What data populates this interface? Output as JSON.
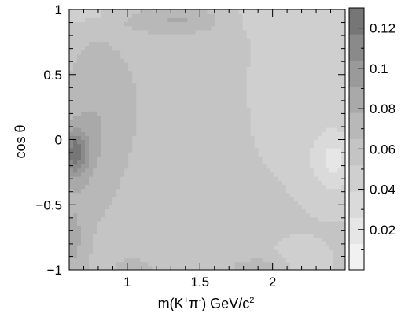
{
  "chart_data": {
    "type": "heatmap",
    "title": "",
    "xlabel_parts": {
      "base": "m(K",
      "sup1": "+",
      "mid": "π",
      "sup2": "-",
      "end": ") GeV/c",
      "sup3": "2"
    },
    "ylabel": "cos θ",
    "xlim": [
      0.6,
      2.5
    ],
    "ylim": [
      -1,
      1
    ],
    "x_ticks": [
      {
        "value": 1,
        "label": "1"
      },
      {
        "value": 1.5,
        "label": "1.5"
      },
      {
        "value": 2,
        "label": "2"
      }
    ],
    "y_ticks": [
      {
        "value": 1,
        "label": "1"
      },
      {
        "value": 0.5,
        "label": "0.5"
      },
      {
        "value": 0,
        "label": "0"
      },
      {
        "value": -0.5,
        "label": "−0.5"
      },
      {
        "value": -1,
        "label": "−1"
      }
    ],
    "colorbar": {
      "range": [
        0,
        0.13
      ],
      "ticks": [
        {
          "value": 0.02,
          "label": "0.02"
        },
        {
          "value": 0.04,
          "label": "0.04"
        },
        {
          "value": 0.06,
          "label": "0.06"
        },
        {
          "value": 0.08,
          "label": "0.08"
        },
        {
          "value": 0.1,
          "label": "0.1"
        },
        {
          "value": 0.12,
          "label": "0.12"
        }
      ],
      "levels": [
        {
          "min": 0.0,
          "max": 0.013,
          "color": "#f1f1f1"
        },
        {
          "min": 0.013,
          "max": 0.026,
          "color": "#e6e6e6"
        },
        {
          "min": 0.026,
          "max": 0.039,
          "color": "#dadada"
        },
        {
          "min": 0.039,
          "max": 0.052,
          "color": "#cfcfcf"
        },
        {
          "min": 0.052,
          "max": 0.065,
          "color": "#c4c4c4"
        },
        {
          "min": 0.065,
          "max": 0.078,
          "color": "#b8b8b8"
        },
        {
          "min": 0.078,
          "max": 0.091,
          "color": "#a9a9a9"
        },
        {
          "min": 0.091,
          "max": 0.104,
          "color": "#9a9a9a"
        },
        {
          "min": 0.104,
          "max": 0.117,
          "color": "#8a8a8a"
        },
        {
          "min": 0.117,
          "max": 0.13,
          "color": "#767676"
        }
      ]
    }
  }
}
